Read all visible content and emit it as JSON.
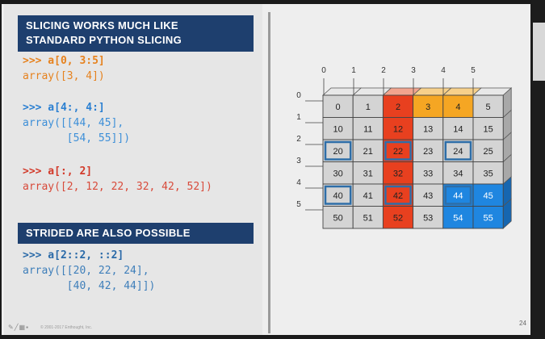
{
  "slide": {
    "header_top": [
      "SLICING WORKS MUCH LIKE",
      "STANDARD PYTHON SLICING"
    ],
    "header_bottom": "STRIDED ARE ALSO POSSIBLE",
    "examples": [
      {
        "prompt": ">>> a[0, 3:5]",
        "output": [
          "array([3, 4])"
        ]
      },
      {
        "prompt": ">>> a[4:, 4:]",
        "output": [
          "array([[44, 45],",
          "       [54, 55]])"
        ]
      },
      {
        "prompt": ">>> a[:, 2]",
        "output": [
          "array([2, 12, 22, 32, 42, 52])"
        ]
      },
      {
        "prompt": ">>> a[2::2, ::2]",
        "output": [
          "array([[20, 22, 24],",
          "       [40, 42, 44]])"
        ]
      }
    ],
    "footer_copyright": "© 2001-2017 Enthought, Inc.",
    "footer_icons": [
      "pen-icon",
      "pencil-icon",
      "grid-icon",
      "menu-icon"
    ],
    "page_number": "24"
  },
  "grid": {
    "col_labels": [
      "0",
      "1",
      "2",
      "3",
      "4",
      "5"
    ],
    "row_labels": [
      "0",
      "1",
      "2",
      "3",
      "4",
      "5"
    ],
    "values": [
      [
        0,
        1,
        2,
        3,
        4,
        5
      ],
      [
        10,
        11,
        12,
        13,
        14,
        15
      ],
      [
        20,
        21,
        22,
        23,
        24,
        25
      ],
      [
        30,
        31,
        32,
        33,
        34,
        35
      ],
      [
        40,
        41,
        42,
        43,
        44,
        45
      ],
      [
        50,
        51,
        52,
        53,
        54,
        55
      ]
    ],
    "highlight_orange": [
      [
        0,
        3
      ],
      [
        0,
        4
      ]
    ],
    "highlight_blue": [
      [
        4,
        4
      ],
      [
        4,
        5
      ],
      [
        5,
        4
      ],
      [
        5,
        5
      ]
    ],
    "highlight_red_column": 2,
    "outlined_cells": [
      [
        2,
        0
      ],
      [
        2,
        2
      ],
      [
        2,
        4
      ],
      [
        4,
        0
      ],
      [
        4,
        2
      ],
      [
        4,
        4
      ]
    ],
    "colors": {
      "default_face": "#d4d4d4",
      "default_top": "#e8e8e8",
      "default_side": "#a8a8a8",
      "red": "#e8401f",
      "red_top": "#f2a48e",
      "orange": "#f5a623",
      "orange_top": "#f7d08a",
      "blue": "#1f86e0",
      "blue_top": "#7fb8ea",
      "blue_side": "#1666b0",
      "outline": "#2e6ea8"
    }
  }
}
